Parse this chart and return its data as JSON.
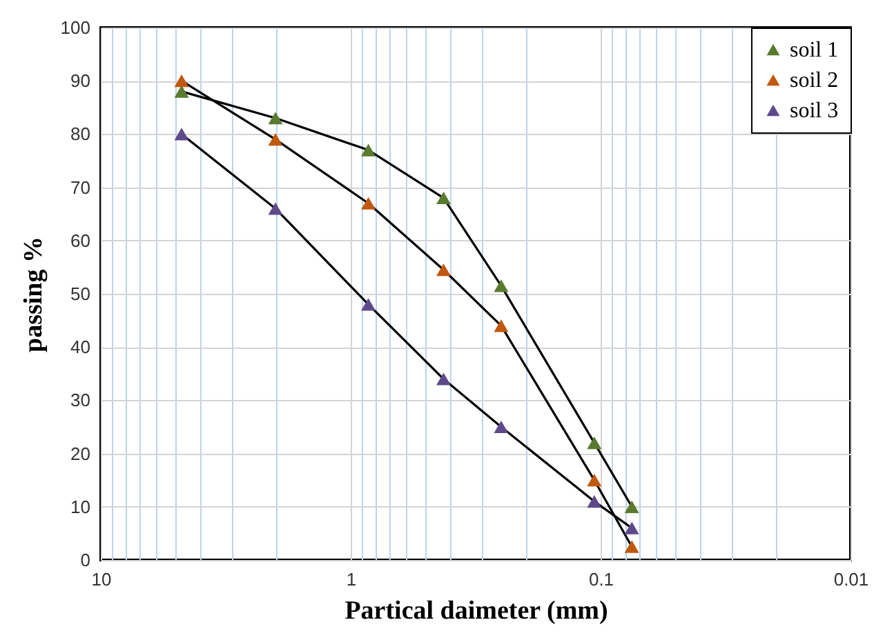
{
  "chart_data": {
    "type": "line",
    "xlabel": "Partical daimeter (mm)",
    "ylabel": "passing %",
    "x": [
      4.75,
      2,
      0.85,
      0.425,
      0.25,
      0.106,
      0.075
    ],
    "series": [
      {
        "name": "soil 1",
        "color": "#5a7a2e",
        "values": [
          88,
          83,
          77,
          68,
          51.5,
          22,
          10
        ]
      },
      {
        "name": "soil 2",
        "color": "#c0580e",
        "values": [
          90,
          79,
          67,
          54.5,
          44,
          15,
          2.5
        ]
      },
      {
        "name": "soil 3",
        "color": "#5e4a8a",
        "values": [
          80,
          66,
          48,
          34,
          25,
          11,
          6
        ]
      }
    ],
    "log": "x",
    "xlim": [
      10,
      0.01
    ],
    "xticks": [
      10,
      {
        "value": 9,
        "label": null
      },
      {
        "value": 8,
        "label": null
      },
      {
        "value": 7,
        "label": null
      },
      {
        "value": 6,
        "label": null
      },
      {
        "value": 5,
        "label": null
      },
      {
        "value": 4,
        "label": null
      },
      {
        "value": 3,
        "label": null
      },
      {
        "value": 2,
        "label": null
      },
      1,
      {
        "value": 0.9,
        "label": null
      },
      {
        "value": 0.8,
        "label": null
      },
      {
        "value": 0.7,
        "label": null
      },
      {
        "value": 0.6,
        "label": null
      },
      {
        "value": 0.5,
        "label": null
      },
      {
        "value": 0.4,
        "label": null
      },
      {
        "value": 0.3,
        "label": null
      },
      {
        "value": 0.2,
        "label": null
      },
      0.1,
      {
        "value": 0.09,
        "label": null
      },
      {
        "value": 0.08,
        "label": null
      },
      {
        "value": 0.07,
        "label": null
      },
      {
        "value": 0.06,
        "label": null
      },
      {
        "value": 0.05,
        "label": null
      },
      {
        "value": 0.04,
        "label": null
      },
      {
        "value": 0.03,
        "label": null
      },
      {
        "value": 0.02,
        "label": null
      },
      0.01
    ],
    "ylim": [
      0,
      100
    ],
    "yticks": [
      0,
      10,
      20,
      30,
      40,
      50,
      60,
      70,
      80,
      90,
      100
    ],
    "grid": true,
    "legend": "top right",
    "marker": "triangle",
    "line_style": "solid"
  }
}
